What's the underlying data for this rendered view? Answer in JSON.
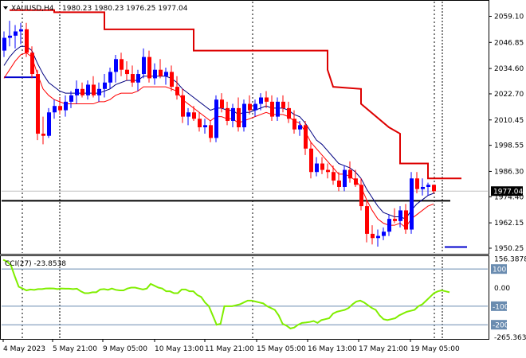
{
  "header": {
    "collapse_icon": "triangle-down-icon",
    "symbol": "XAUUSD,H4",
    "ohlc": "1980.23 1980.23 1976.25 1977.04"
  },
  "chart_data": [
    {
      "type": "candlestick",
      "title": "XAUUSD,H4",
      "ylim": [
        1948.0,
        2066.0
      ],
      "yticks": [
        "2059.10",
        "2046.85",
        "2034.60",
        "2022.70",
        "2010.45",
        "1998.55",
        "1986.30",
        "1974.40",
        "1962.15",
        "1950.25"
      ],
      "xticks": [
        "4 May 2023",
        "5 May 21:00",
        "9 May 05:00",
        "10 May 13:00",
        "11 May 21:00",
        "15 May 05:00",
        "16 May 13:00",
        "17 May 21:00",
        "19 May 05:00"
      ],
      "current_price_label": "1977.04",
      "colors": {
        "bull": "#0000ff",
        "bear": "#ff0000",
        "ema_fast": "#000080",
        "ema_slow": "#ff0000",
        "stop_line": "#dd0000",
        "support_line": "#000000",
        "price_line": "#c0c0c0",
        "grid": "#000000"
      },
      "candles": [
        [
          2043.0,
          2052.0,
          2040.0,
          2049.0
        ],
        [
          2049.0,
          2057.0,
          2045.0,
          2050.0
        ],
        [
          2050.0,
          2055.0,
          2044.0,
          2052.0
        ],
        [
          2052.0,
          2056.0,
          2046.0,
          2053.0
        ],
        [
          2053.0,
          2056.0,
          2040.0,
          2042.0
        ],
        [
          2042.0,
          2045.0,
          2030.0,
          2032.0
        ],
        [
          2032.0,
          2034.0,
          2001.0,
          2004.0
        ],
        [
          2004.0,
          2012.0,
          1999.0,
          2003.0
        ],
        [
          2003.0,
          2016.0,
          2002.0,
          2014.0
        ],
        [
          2014.0,
          2020.0,
          2011.0,
          2017.0
        ],
        [
          2017.0,
          2021.0,
          2013.0,
          2015.0
        ],
        [
          2015.0,
          2022.0,
          2012.0,
          2019.0
        ],
        [
          2019.0,
          2024.0,
          2016.0,
          2022.0
        ],
        [
          2022.0,
          2029.0,
          2018.0,
          2025.0
        ],
        [
          2025.0,
          2028.0,
          2021.0,
          2022.0
        ],
        [
          2022.0,
          2029.0,
          2020.0,
          2027.0
        ],
        [
          2027.0,
          2031.0,
          2021.0,
          2022.0
        ],
        [
          2022.0,
          2028.0,
          2019.0,
          2025.0
        ],
        [
          2025.0,
          2032.0,
          2021.0,
          2028.0
        ],
        [
          2028.0,
          2035.0,
          2025.0,
          2033.0
        ],
        [
          2033.0,
          2041.0,
          2028.0,
          2039.0
        ],
        [
          2039.0,
          2042.0,
          2031.0,
          2034.0
        ],
        [
          2034.0,
          2038.0,
          2029.0,
          2032.0
        ],
        [
          2032.0,
          2036.0,
          2026.0,
          2028.0
        ],
        [
          2028.0,
          2034.0,
          2024.0,
          2032.0
        ],
        [
          2032.0,
          2044.0,
          2030.0,
          2040.0
        ],
        [
          2040.0,
          2043.0,
          2028.0,
          2030.0
        ],
        [
          2030.0,
          2037.0,
          2027.0,
          2034.0
        ],
        [
          2034.0,
          2039.0,
          2030.0,
          2031.0
        ],
        [
          2031.0,
          2035.0,
          2027.0,
          2033.0
        ],
        [
          2033.0,
          2036.0,
          2024.0,
          2026.0
        ],
        [
          2026.0,
          2031.0,
          2020.0,
          2022.0
        ],
        [
          2022.0,
          2025.0,
          2009.0,
          2012.0
        ],
        [
          2012.0,
          2016.0,
          2008.0,
          2014.0
        ],
        [
          2014.0,
          2017.0,
          2010.0,
          2011.0
        ],
        [
          2011.0,
          2014.0,
          2005.0,
          2007.0
        ],
        [
          2007.0,
          2011.0,
          2004.0,
          2008.0
        ],
        [
          2008.0,
          2010.0,
          2000.0,
          2002.0
        ],
        [
          2002.0,
          2022.0,
          2000.0,
          2020.0
        ],
        [
          2020.0,
          2023.0,
          2014.0,
          2016.0
        ],
        [
          2016.0,
          2019.0,
          2008.0,
          2010.0
        ],
        [
          2010.0,
          2018.0,
          2007.0,
          2016.0
        ],
        [
          2016.0,
          2021.0,
          2005.0,
          2007.0
        ],
        [
          2007.0,
          2020.0,
          2005.0,
          2018.0
        ],
        [
          2018.0,
          2022.0,
          2013.0,
          2015.0
        ],
        [
          2015.0,
          2020.0,
          2012.0,
          2018.0
        ],
        [
          2018.0,
          2023.0,
          2015.0,
          2021.0
        ],
        [
          2021.0,
          2024.0,
          2016.0,
          2019.0
        ],
        [
          2019.0,
          2022.0,
          2010.0,
          2012.0
        ],
        [
          2012.0,
          2021.0,
          2010.0,
          2019.0
        ],
        [
          2019.0,
          2022.0,
          2014.0,
          2016.0
        ],
        [
          2016.0,
          2019.0,
          2009.0,
          2011.0
        ],
        [
          2011.0,
          2015.0,
          2004.0,
          2006.0
        ],
        [
          2006.0,
          2010.0,
          2003.0,
          2008.0
        ],
        [
          2008.0,
          2010.0,
          1994.0,
          1997.0
        ],
        [
          1997.0,
          2000.0,
          1983.0,
          1986.0
        ],
        [
          1986.0,
          1993.0,
          1984.0,
          1990.0
        ],
        [
          1990.0,
          1993.0,
          1985.0,
          1987.0
        ],
        [
          1987.0,
          1990.0,
          1983.0,
          1986.0
        ],
        [
          1986.0,
          1989.0,
          1980.0,
          1982.0
        ],
        [
          1982.0,
          1986.0,
          1977.0,
          1979.0
        ],
        [
          1979.0,
          1989.0,
          1977.0,
          1987.0
        ],
        [
          1987.0,
          1991.0,
          1981.0,
          1983.0
        ],
        [
          1983.0,
          1987.0,
          1979.0,
          1980.0
        ],
        [
          1980.0,
          1983.0,
          1968.0,
          1970.0
        ],
        [
          1970.0,
          1973.0,
          1953.0,
          1957.0
        ],
        [
          1957.0,
          1961.0,
          1952.0,
          1955.0
        ],
        [
          1955.0,
          1959.0,
          1951.0,
          1956.0
        ],
        [
          1956.0,
          1960.0,
          1954.0,
          1958.0
        ],
        [
          1958.0,
          1966.0,
          1956.0,
          1964.0
        ],
        [
          1964.0,
          1969.0,
          1962.0,
          1963.0
        ],
        [
          1963.0,
          1970.0,
          1960.0,
          1968.0
        ],
        [
          1968.0,
          1971.0,
          1957.0,
          1959.0
        ],
        [
          1959.0,
          1986.0,
          1957.0,
          1983.0
        ],
        [
          1983.0,
          1986.0,
          1976.0,
          1978.0
        ],
        [
          1978.0,
          1983.0,
          1975.0,
          1979.0
        ],
        [
          1979.0,
          1981.0,
          1975.0,
          1980.0
        ],
        [
          1980.0,
          1980.0,
          1976.0,
          1977.0
        ]
      ],
      "ema_fast": [
        2036,
        2040,
        2043,
        2045,
        2045,
        2043,
        2037,
        2032,
        2028,
        2026,
        2024,
        2023,
        2023,
        2023,
        2023,
        2023,
        2023,
        2023,
        2024,
        2025,
        2027,
        2028,
        2029,
        2029,
        2029,
        2031,
        2031,
        2031,
        2031,
        2031,
        2030,
        2028,
        2025,
        2023,
        2021,
        2019,
        2017,
        2015,
        2016,
        2016,
        2015,
        2015,
        2013,
        2014,
        2014,
        2015,
        2016,
        2017,
        2016,
        2016,
        2016,
        2015,
        2013,
        2012,
        2009,
        2005,
        2001,
        1999,
        1996,
        1993,
        1990,
        1989,
        1988,
        1986,
        1983,
        1978,
        1974,
        1970,
        1967,
        1966,
        1965,
        1965,
        1964,
        1968,
        1971,
        1973,
        1975,
        1976
      ],
      "ema_slow": [
        2030,
        2034,
        2038,
        2041,
        2042,
        2040,
        2032,
        2025,
        2022,
        2020,
        2019,
        2018,
        2018,
        2018,
        2018,
        2018,
        2018,
        2019,
        2019,
        2020,
        2022,
        2023,
        2023,
        2023,
        2024,
        2026,
        2026,
        2026,
        2026,
        2026,
        2025,
        2024,
        2020,
        2018,
        2016,
        2014,
        2012,
        2010,
        2012,
        2012,
        2011,
        2011,
        2009,
        2010,
        2011,
        2012,
        2013,
        2014,
        2013,
        2013,
        2013,
        2012,
        2010,
        2009,
        2005,
        2000,
        1997,
        1994,
        1991,
        1988,
        1985,
        1985,
        1984,
        1982,
        1979,
        1973,
        1968,
        1964,
        1962,
        1961,
        1961,
        1962,
        1960,
        1964,
        1966,
        1968,
        1970,
        1971
      ],
      "stop_line": [
        [
          1,
          2062
        ],
        [
          9,
          2062
        ],
        [
          9,
          2061
        ],
        [
          18,
          2061
        ],
        [
          18,
          2053
        ],
        [
          34,
          2053
        ],
        [
          34,
          2043
        ],
        [
          46,
          2043
        ],
        [
          46,
          2043
        ],
        [
          58,
          2043
        ],
        [
          58,
          2034
        ],
        [
          59,
          2026
        ],
        [
          64,
          2025
        ],
        [
          64,
          2018
        ],
        [
          69,
          2007
        ],
        [
          71,
          2004
        ],
        [
          71,
          1990
        ],
        [
          76,
          1990
        ],
        [
          76,
          1983
        ],
        [
          82,
          1983
        ]
      ],
      "support_level": 1972.5,
      "price_line_level": 1977.04,
      "marker_1": {
        "level": 2030.5,
        "from": 0,
        "to": 6
      },
      "marker_2": {
        "level": 1950.8,
        "from": 79,
        "to": 83
      }
    },
    {
      "type": "line",
      "title": "CCI(27) -23.8538",
      "ylim": [
        -272,
        165
      ],
      "yticks": [
        "156.3878",
        "100",
        "0.00",
        "-100",
        "-200",
        "-265.3634"
      ],
      "levels": [
        100,
        -100,
        -200
      ],
      "line_color": "#80ee00",
      "values": [
        150,
        140,
        120,
        60,
        5,
        -5,
        -15,
        -10,
        -12,
        -8,
        -8,
        -5,
        -4,
        -5,
        -8,
        -5,
        -6,
        -6,
        -8,
        -6,
        -20,
        -30,
        -30,
        -25,
        -25,
        -10,
        -8,
        -12,
        -5,
        -12,
        -15,
        -15,
        -5,
        0,
        0,
        -5,
        -10,
        -5,
        20,
        10,
        0,
        -5,
        -20,
        -20,
        -30,
        -30,
        -10,
        -10,
        -20,
        -20,
        -40,
        -50,
        -80,
        -100,
        -150,
        -200,
        -195,
        -100,
        -100,
        -100,
        -95,
        -90,
        -80,
        -70,
        -70,
        -75,
        -80,
        -85,
        -100,
        -110,
        -120,
        -150,
        -195,
        -205,
        -220,
        -215,
        -200,
        -190,
        -188,
        -185,
        -180,
        -190,
        -175,
        -170,
        -165,
        -140,
        -130,
        -125,
        -120,
        -110,
        -90,
        -75,
        -70,
        -80,
        -95,
        -110,
        -120,
        -150,
        -170,
        -175,
        -170,
        -165,
        -150,
        -140,
        -130,
        -125,
        -120,
        -100,
        -90,
        -70,
        -50,
        -30,
        -20,
        -15,
        -20,
        -25
      ]
    }
  ]
}
